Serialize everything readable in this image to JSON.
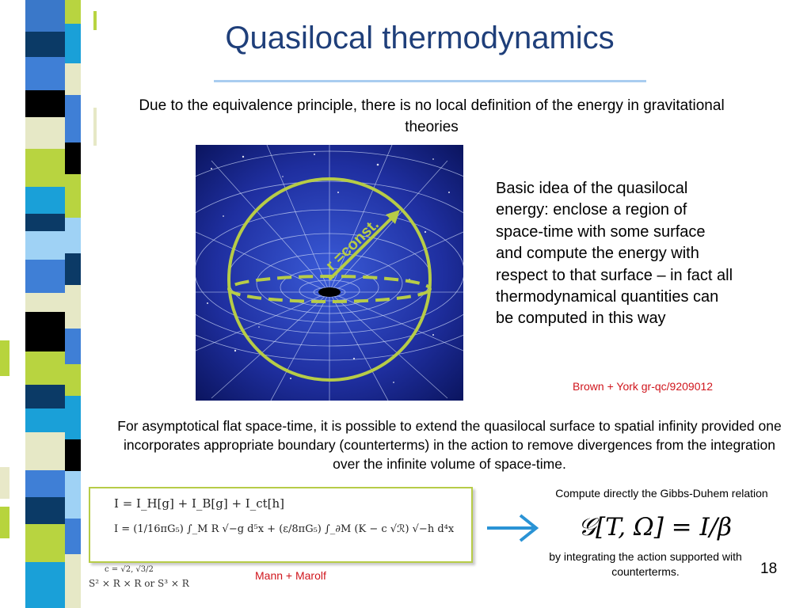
{
  "slide": {
    "title": "Quasilocal thermodynamics",
    "intro": "Due to the equivalence principle, there is no local definition of the energy in gravitational theories",
    "figure_label": "r =const.",
    "basic_idea": "Basic idea of the quasilocal energy: enclose a region of space-time with some surface and compute the energy with respect to that surface – in fact all thermodynamical quantities can be computed in this way",
    "brown_york_ref": "Brown + York gr-qc/9209012",
    "asymptotic": "For asymptotical flat space-time, it is possible to extend the quasilocal surface to spatial infinity provided one incorporates appropriate boundary (counterterms) in the action to remove divergences from the integration over the infinite volume of space-time.",
    "equation_1": "I = I_H[g] + I_B[g] + I_ct[h]",
    "equation_2": "I = (1/16πG₅) ∫_M R √−g d⁵x + (ε/8πG₅) ∫_∂M (K − c √ℛ) √−h d⁴x",
    "c_values": "c = √2, √3/2",
    "topologies": "S² × R × R or S³ × R",
    "mann_marolf_ref": "Mann + Marolf",
    "gibbs_duhem_title": "Compute directly the Gibbs-Duhem relation",
    "gibbs_relation": "𝒢[T, Ω] = I/β",
    "gibbs_duhem_sub": "by integrating the action supported with counterterms.",
    "page_number": "18"
  },
  "colors": {
    "title": "#1f3f7a",
    "accent_green": "#b7cc47",
    "reference_red": "#d0161d",
    "arrow_blue": "#2a93d5",
    "title_rule": "#a9cdf0"
  }
}
